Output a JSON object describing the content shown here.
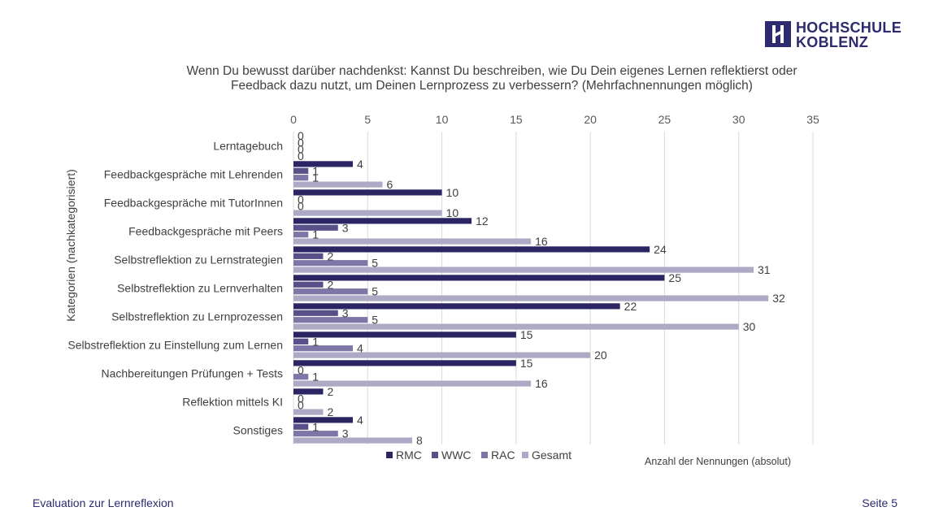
{
  "logo": {
    "line1": "HOCHSCHULE",
    "line2": "KOBLENZ"
  },
  "footer": {
    "left": "Evaluation zur Lernreflexion",
    "right": "Seite 5"
  },
  "colors": {
    "RMC": "#2b2563",
    "WWC": "#5a5089",
    "RAC": "#7e76a6",
    "Gesamt": "#aeaac6",
    "brand": "#2d2a6e"
  },
  "chart_data": {
    "type": "bar",
    "orientation": "horizontal",
    "title_lines": [
      "Wenn Du bewusst darüber nachdenkst: Kannst Du beschreiben, wie Du Dein eigenes Lernen reflektierst oder",
      "Feedback dazu nutzt,  um Deinen Lernprozess zu verbessern? (Mehrfachnennungen möglich)"
    ],
    "ylabel": "Kategorien (nachkategorisiert)",
    "xlabel": "Anzahl der Nennungen (absolut)",
    "xlim": [
      0,
      35
    ],
    "xticks": [
      0,
      5,
      10,
      15,
      20,
      25,
      30,
      35
    ],
    "x_axis_position": "top",
    "grid": true,
    "legend_position": "bottom",
    "categories": [
      "Lerntagebuch",
      "Feedbackgespräche mit Lehrenden",
      "Feedbackgespräche mit TutorInnen",
      "Feedbackgespräche mit Peers",
      "Selbstreflektion zu Lernstrategien",
      "Selbstreflektion zu Lernverhalten",
      "Selbstreflektion zu Lernprozessen",
      "Selbstreflektion zu Einstellung zum Lernen",
      "Nachbereitungen Prüfungen + Tests",
      "Reflektion mittels KI",
      "Sonstiges"
    ],
    "series": [
      {
        "name": "RMC",
        "values": [
          0,
          4,
          10,
          12,
          24,
          25,
          22,
          15,
          15,
          2,
          4
        ]
      },
      {
        "name": "WWC",
        "values": [
          0,
          1,
          0,
          3,
          2,
          2,
          3,
          1,
          0,
          0,
          1
        ]
      },
      {
        "name": "RAC",
        "values": [
          0,
          1,
          0,
          1,
          5,
          5,
          5,
          4,
          1,
          0,
          3
        ]
      },
      {
        "name": "Gesamt",
        "values": [
          0,
          6,
          10,
          16,
          31,
          32,
          30,
          20,
          16,
          2,
          8
        ]
      }
    ]
  }
}
